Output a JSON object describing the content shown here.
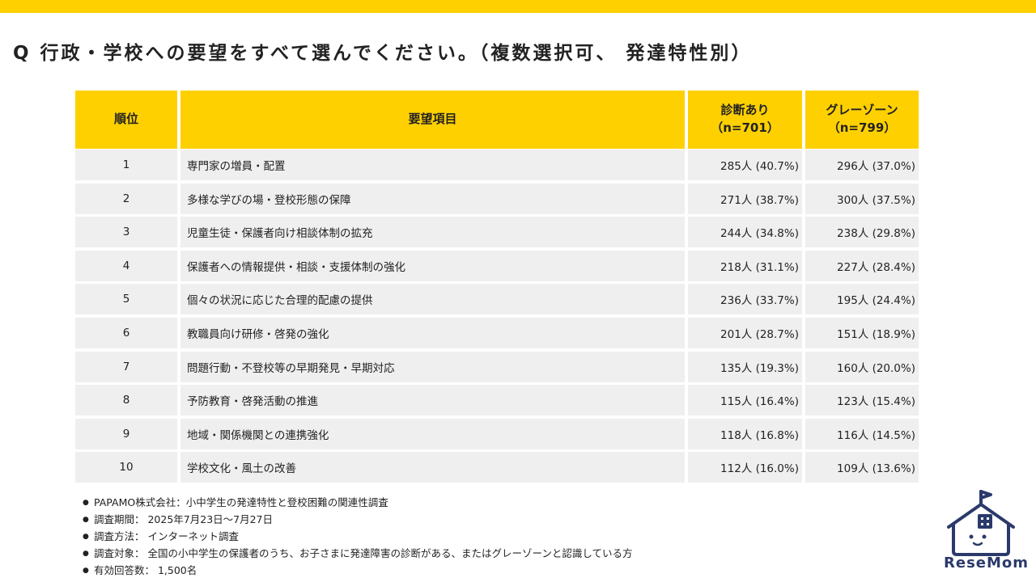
{
  "title": "Q 行政・学校への要望をすべて選んでください。（複数選択可、 発達特性別）",
  "table": {
    "headers": {
      "rank": "順位",
      "item": "要望項目",
      "diagnosed_line1": "診断あり",
      "diagnosed_line2": "（n=701）",
      "gray_line1": "グレーゾーン",
      "gray_line2": "（n=799）"
    },
    "rows": [
      {
        "rank": "1",
        "item": "専門家の増員・配置",
        "diagnosed": "285人 (40.7%)",
        "gray": "296人 (37.0%)"
      },
      {
        "rank": "2",
        "item": "多様な学びの場・登校形態の保障",
        "diagnosed": "271人 (38.7%)",
        "gray": "300人 (37.5%)"
      },
      {
        "rank": "3",
        "item": "児童生徒・保護者向け相談体制の拡充",
        "diagnosed": "244人 (34.8%)",
        "gray": "238人 (29.8%)"
      },
      {
        "rank": "4",
        "item": "保護者への情報提供・相談・支援体制の強化",
        "diagnosed": "218人 (31.1%)",
        "gray": "227人 (28.4%)"
      },
      {
        "rank": "5",
        "item": "個々の状況に応じた合理的配慮の提供",
        "diagnosed": "236人 (33.7%)",
        "gray": "195人 (24.4%)"
      },
      {
        "rank": "6",
        "item": "教職員向け研修・啓発の強化",
        "diagnosed": "201人 (28.7%)",
        "gray": "151人 (18.9%)"
      },
      {
        "rank": "7",
        "item": "問題行動・不登校等の早期発見・早期対応",
        "diagnosed": "135人 (19.3%)",
        "gray": "160人 (20.0%)"
      },
      {
        "rank": "8",
        "item": "予防教育・啓発活動の推進",
        "diagnosed": "115人 (16.4%)",
        "gray": "123人 (15.4%)"
      },
      {
        "rank": "9",
        "item": "地域・関係機関との連携強化",
        "diagnosed": "118人 (16.8%)",
        "gray": "116人 (14.5%)"
      },
      {
        "rank": "10",
        "item": "学校文化・風土の改善",
        "diagnosed": "112人 (16.0%)",
        "gray": "109人 (13.6%)"
      }
    ]
  },
  "notes": [
    "PAPAMO株式会社：小中学生の発達特性と登校困難の関連性調査",
    "調査期間： 2025年7月23日～7月27日",
    "調査方法： インターネット調査",
    "調査対象： 全国の小中学生の保護者のうち、お子さまに発達障害の診断がある、またはグレーゾーンと認識している方",
    "有効回答数： 1,500名"
  ],
  "logo": {
    "brand_text": "ReseMom",
    "icon": "house-face-logo-icon",
    "color": "#2b3a6a"
  },
  "colors": {
    "accent": "#FFD000",
    "row_bg": "#EFEFEF"
  }
}
